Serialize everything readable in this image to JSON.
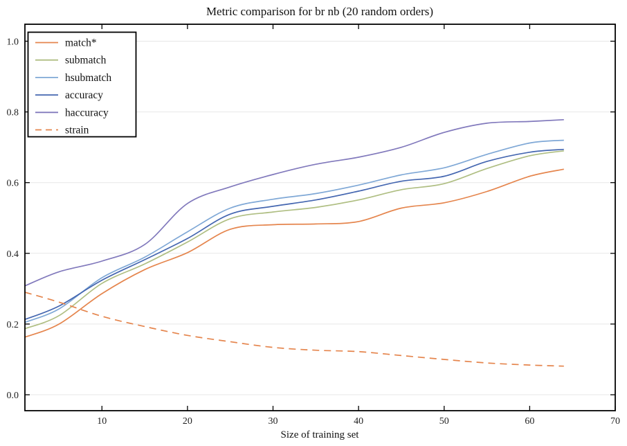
{
  "chart_data": {
    "type": "line",
    "title": "Metric comparison for br nb (20 random orders)",
    "xlabel": "Size of training set",
    "ylabel": "",
    "xlim": [
      1,
      70
    ],
    "ylim": [
      -0.045,
      1.048
    ],
    "xticks": [
      10,
      20,
      30,
      40,
      50,
      60,
      70
    ],
    "yticks": [
      0.0,
      0.2,
      0.4,
      0.6,
      0.8,
      1.0
    ],
    "ytick_labels": [
      "0.0",
      "0.2",
      "0.4",
      "0.6",
      "0.8",
      "1.0"
    ],
    "grid": "horizontal",
    "legend_position": "upper left",
    "x": [
      1,
      5,
      10,
      15,
      20,
      25,
      30,
      35,
      40,
      45,
      50,
      55,
      60,
      64
    ],
    "series": [
      {
        "name": "match*",
        "color": "#E5854D",
        "style": "solid",
        "values": [
          0.163,
          0.2,
          0.286,
          0.354,
          0.402,
          0.468,
          0.481,
          0.483,
          0.49,
          0.528,
          0.543,
          0.575,
          0.618,
          0.638
        ]
      },
      {
        "name": "submatch",
        "color": "#AFBE82",
        "style": "solid",
        "values": [
          0.187,
          0.224,
          0.315,
          0.37,
          0.432,
          0.498,
          0.517,
          0.53,
          0.551,
          0.58,
          0.597,
          0.64,
          0.676,
          0.69
        ]
      },
      {
        "name": "hsubmatch",
        "color": "#7FA8D6",
        "style": "solid",
        "values": [
          0.205,
          0.243,
          0.331,
          0.389,
          0.461,
          0.528,
          0.553,
          0.569,
          0.593,
          0.622,
          0.642,
          0.68,
          0.712,
          0.72
        ]
      },
      {
        "name": "accuracy",
        "color": "#4466B0",
        "style": "solid",
        "values": [
          0.213,
          0.251,
          0.324,
          0.382,
          0.442,
          0.511,
          0.533,
          0.551,
          0.576,
          0.604,
          0.618,
          0.66,
          0.686,
          0.694
        ]
      },
      {
        "name": "haccuracy",
        "color": "#8179BC",
        "style": "solid",
        "values": [
          0.308,
          0.348,
          0.378,
          0.425,
          0.541,
          0.588,
          0.623,
          0.652,
          0.672,
          0.7,
          0.742,
          0.768,
          0.773,
          0.778
        ]
      },
      {
        "name": "strain",
        "color": "#E5854D",
        "style": "dashed",
        "values": [
          0.29,
          0.262,
          0.222,
          0.193,
          0.168,
          0.15,
          0.134,
          0.126,
          0.122,
          0.111,
          0.1,
          0.09,
          0.084,
          0.081
        ]
      }
    ],
    "colors": {
      "grid": "#E7E7E7",
      "spine": "#000000",
      "background": "#FFFFFF"
    }
  }
}
